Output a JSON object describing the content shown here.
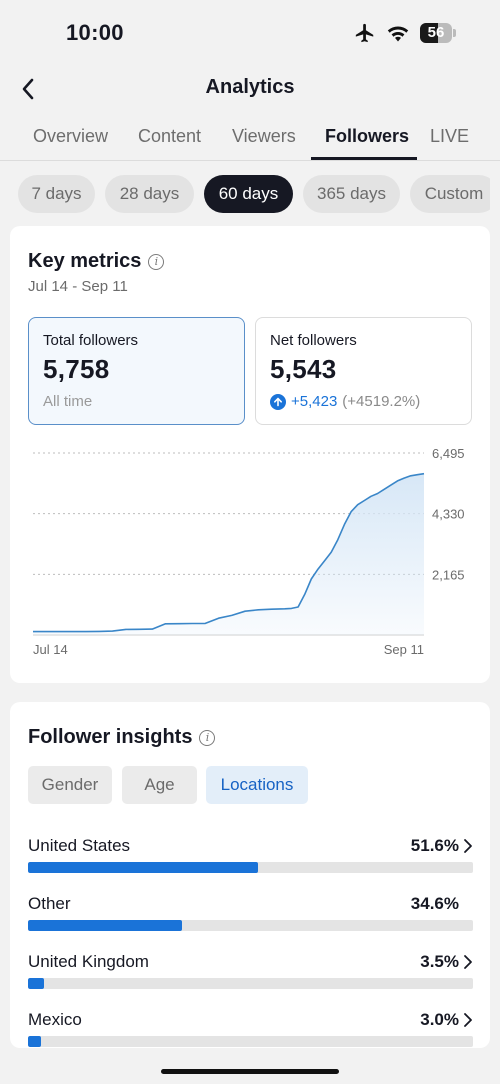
{
  "status_bar": {
    "time": "10:00",
    "battery_level": "56",
    "battery_fraction": 0.56,
    "icons": [
      "airplane-icon",
      "wifi-icon",
      "battery-icon"
    ]
  },
  "header": {
    "title": "Analytics",
    "back_icon": "chevron-left-icon"
  },
  "tabs": [
    {
      "label": "Overview",
      "active": false
    },
    {
      "label": "Content",
      "active": false
    },
    {
      "label": "Viewers",
      "active": false
    },
    {
      "label": "Followers",
      "active": true
    },
    {
      "label": "LIVE",
      "active": false
    }
  ],
  "ranges": [
    {
      "label": "7 days",
      "active": false
    },
    {
      "label": "28 days",
      "active": false
    },
    {
      "label": "60 days",
      "active": true
    },
    {
      "label": "365 days",
      "active": false
    },
    {
      "label": "Custom",
      "active": false
    }
  ],
  "key_metrics": {
    "title": "Key metrics",
    "date_range": "Jul 14 - Sep 11",
    "total": {
      "label": "Total followers",
      "value": "5,758",
      "sub": "All time"
    },
    "net": {
      "label": "Net followers",
      "value": "5,543",
      "change_abs": "+5,423",
      "change_pct": "(+4519.2%)"
    }
  },
  "chart_data": {
    "type": "area",
    "x_start_label": "Jul 14",
    "x_end_label": "Sep 11",
    "yticks": [
      "6,495",
      "4,330",
      "2,165"
    ],
    "ytick_values": [
      6495,
      4330,
      2165
    ],
    "ylim": [
      0,
      6495
    ],
    "grid": true,
    "colors": {
      "line": "#3a86c8",
      "fill": "#d5e6f6"
    },
    "series": [
      {
        "x": [
          1,
          3,
          5,
          7,
          9,
          11,
          13,
          15,
          17,
          19,
          21,
          23,
          25,
          27,
          29,
          31,
          33,
          35,
          37,
          39,
          40,
          41,
          42,
          43,
          44,
          45,
          46,
          47,
          48,
          49,
          50,
          51,
          52,
          53,
          54,
          55,
          56,
          57,
          58,
          59,
          60
        ],
        "values": [
          120,
          120,
          120,
          120,
          120,
          130,
          140,
          200,
          205,
          210,
          400,
          405,
          410,
          415,
          600,
          700,
          850,
          900,
          920,
          935,
          950,
          1000,
          1450,
          2000,
          2350,
          2650,
          2950,
          3400,
          3950,
          4400,
          4650,
          4800,
          4950,
          5050,
          5200,
          5350,
          5500,
          5600,
          5680,
          5720,
          5758
        ]
      }
    ]
  },
  "insights": {
    "title": "Follower insights",
    "segments": [
      {
        "label": "Gender",
        "active": false
      },
      {
        "label": "Age",
        "active": false
      },
      {
        "label": "Locations",
        "active": true
      }
    ],
    "locations": [
      {
        "name": "United States",
        "pct_label": "51.6%",
        "pct": 51.6,
        "has_chevron": true
      },
      {
        "name": "Other",
        "pct_label": "34.6%",
        "pct": 34.6,
        "has_chevron": false
      },
      {
        "name": "United Kingdom",
        "pct_label": "3.5%",
        "pct": 3.5,
        "has_chevron": true
      },
      {
        "name": "Mexico",
        "pct_label": "3.0%",
        "pct": 3.0,
        "has_chevron": true
      }
    ]
  }
}
